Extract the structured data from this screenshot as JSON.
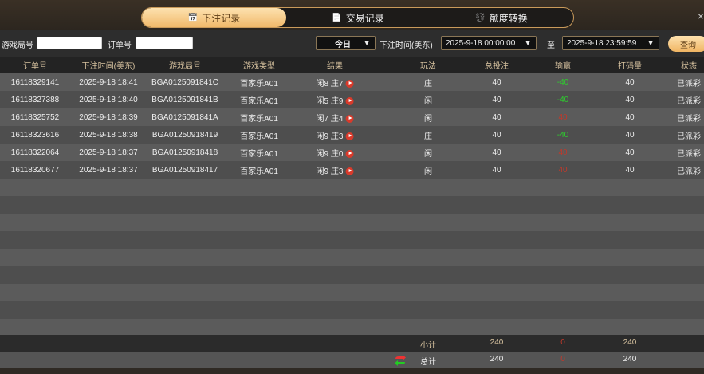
{
  "tabs": [
    {
      "label": "下注记录",
      "icon": "calendar-icon",
      "active": true
    },
    {
      "label": "交易记录",
      "icon": "document-icon"
    },
    {
      "label": "额度转换",
      "icon": "coin-transfer-icon"
    }
  ],
  "close": "×",
  "filters": {
    "game_round_label": "游戏局号",
    "game_round_value": "",
    "order_label": "订单号",
    "order_value": "",
    "period": "今日",
    "time_label": "下注时间(美东)",
    "start": "2025-9-18 00:00:00",
    "to": "至",
    "end": "2025-9-18 23:59:59",
    "query": "查询"
  },
  "columns": [
    "订单号",
    "下注时间(美东)",
    "游戏局号",
    "游戏类型",
    "结果",
    "玩法",
    "总投注",
    "输赢",
    "打码量",
    "状态"
  ],
  "rows": [
    [
      "16118329141",
      "2025-9-18 18:41",
      "BGA0125091841C",
      "百家乐A01",
      "闲8 庄7",
      "庄",
      "40",
      "-40",
      "40",
      "已派彩"
    ],
    [
      "16118327388",
      "2025-9-18 18:40",
      "BGA0125091841B",
      "百家乐A01",
      "闲5 庄9",
      "闲",
      "40",
      "-40",
      "40",
      "已派彩"
    ],
    [
      "16118325752",
      "2025-9-18 18:39",
      "BGA0125091841A",
      "百家乐A01",
      "闲7 庄4",
      "闲",
      "40",
      "40",
      "40",
      "已派彩"
    ],
    [
      "16118323616",
      "2025-9-18 18:38",
      "BGA01250918419",
      "百家乐A01",
      "闲9 庄3",
      "庄",
      "40",
      "-40",
      "40",
      "已派彩"
    ],
    [
      "16118322064",
      "2025-9-18 18:37",
      "BGA01250918418",
      "百家乐A01",
      "闲9 庄0",
      "闲",
      "40",
      "40",
      "40",
      "已派彩"
    ],
    [
      "16118320677",
      "2025-9-18 18:37",
      "BGA01250918417",
      "百家乐A01",
      "闲9 庄3",
      "闲",
      "40",
      "40",
      "40",
      "已派彩"
    ]
  ],
  "subtotal": {
    "label": "小计",
    "bet": "240",
    "win": "0",
    "turnover": "240"
  },
  "total": {
    "label": "总计",
    "bet": "240",
    "win": "0",
    "turnover": "240",
    "icon": "refresh-arrows-icon"
  },
  "colors": {
    "accent": "#f1b96a",
    "loss": "#2ecc2e",
    "win": "#c0392b"
  }
}
